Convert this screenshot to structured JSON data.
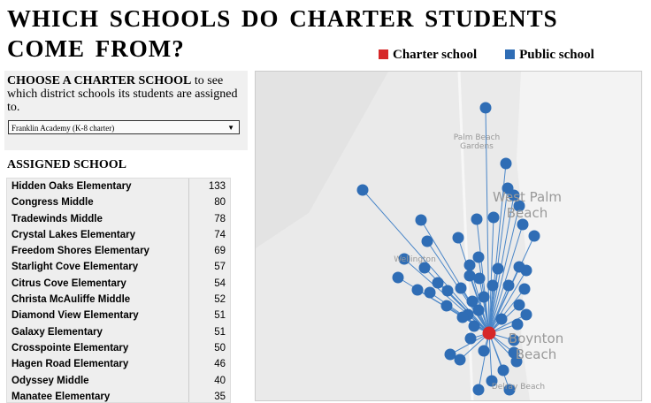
{
  "title": "WHICH SCHOOLS DO CHARTER STUDENTS COME FROM?",
  "legend": [
    {
      "label": "Charter school",
      "color": "#d62728"
    },
    {
      "label": "Public school",
      "color": "#2f6db5"
    }
  ],
  "chooser": {
    "heading": "CHOOSE A CHARTER SCHOOL",
    "text": " to see which district schools its students are assigned to.",
    "selected": "Franklin Academy (K-8 charter)",
    "arrow": "▼"
  },
  "table_heading": "ASSIGNED SCHOOL",
  "rows": [
    {
      "name": "Hidden Oaks Elementary",
      "count": "133"
    },
    {
      "name": "Congress Middle",
      "count": "80"
    },
    {
      "name": "Tradewinds Middle",
      "count": "78"
    },
    {
      "name": "Crystal Lakes Elementary",
      "count": "74"
    },
    {
      "name": "Freedom Shores Elementary",
      "count": "69"
    },
    {
      "name": "Starlight Cove Elementary",
      "count": "57"
    },
    {
      "name": "Citrus Cove Elementary",
      "count": "54"
    },
    {
      "name": "Christa McAuliffe Middle",
      "count": "52"
    },
    {
      "name": "Diamond View Elementary",
      "count": "51"
    },
    {
      "name": "Galaxy Elementary",
      "count": "51"
    },
    {
      "name": "Crosspointe Elementary",
      "count": "50"
    },
    {
      "name": "Hagen Road Elementary",
      "count": "46"
    },
    {
      "name": "Odyssey Middle",
      "count": "40"
    },
    {
      "name": "Manatee Elementary",
      "count": "35"
    }
  ],
  "map": {
    "places": {
      "pbg": "Palm Beach Gardens",
      "wpb": "West Palm Beach",
      "wel": "Wellington",
      "boy": "Boynton Beach",
      "del": "Delray Beach"
    }
  }
}
